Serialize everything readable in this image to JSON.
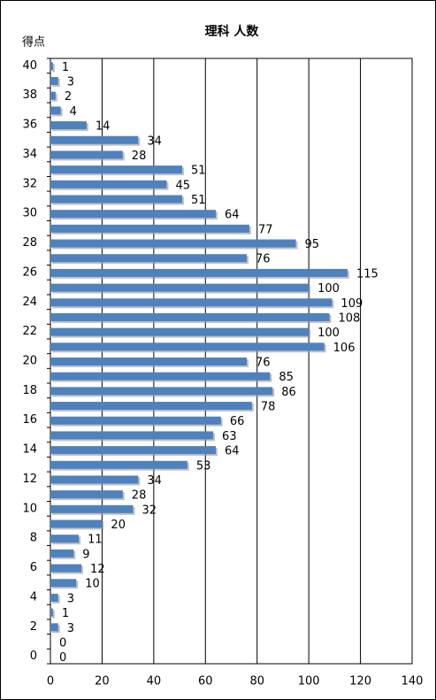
{
  "chart_data": {
    "type": "bar",
    "orientation": "horizontal",
    "title": "理科 人数",
    "y_label": "得点",
    "categories": [
      "40",
      null,
      "38",
      null,
      "36",
      null,
      "34",
      null,
      "32",
      null,
      "30",
      null,
      "28",
      null,
      "26",
      null,
      "24",
      null,
      "22",
      null,
      "20",
      null,
      "18",
      null,
      "16",
      null,
      "14",
      null,
      "12",
      null,
      "10",
      null,
      "8",
      null,
      "6",
      null,
      "4",
      null,
      "2",
      null,
      "0"
    ],
    "values": [
      1,
      3,
      2,
      4,
      14,
      34,
      28,
      51,
      45,
      51,
      64,
      77,
      95,
      76,
      115,
      100,
      109,
      108,
      100,
      106,
      76,
      85,
      86,
      78,
      66,
      63,
      64,
      53,
      34,
      28,
      32,
      20,
      11,
      9,
      12,
      10,
      3,
      1,
      3,
      0,
      0
    ],
    "color": "#4f81bd",
    "xlim": [
      0,
      140
    ],
    "xticks": [
      0,
      20,
      40,
      60,
      80,
      100,
      120,
      140
    ],
    "grid": true
  }
}
